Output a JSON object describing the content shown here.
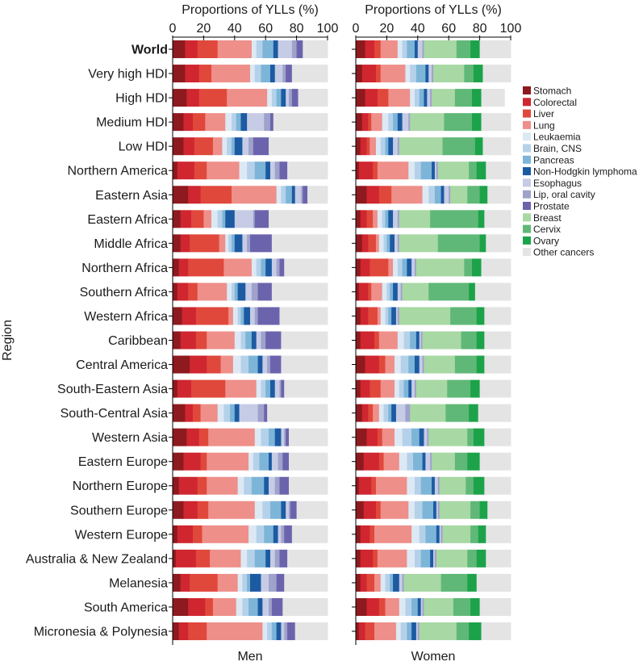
{
  "chart_data": {
    "type": "bar",
    "orientation": "horizontal",
    "stacked": true,
    "top_axis_title": "Proportions of YLLs (%)",
    "y_axis_title": "Region",
    "xlim": [
      0,
      100
    ],
    "ticks": [
      0,
      20,
      40,
      60,
      80,
      100
    ],
    "regions": [
      "World",
      "Very high HDI",
      "High HDI",
      "Medium HDI",
      "Low HDI",
      "Northern America",
      "Eastern Asia",
      "Eastern Africa",
      "Middle Africa",
      "Northern Africa",
      "Southern Africa",
      "Western Africa",
      "Caribbean",
      "Central America",
      "South-Eastern Asia",
      "South-Central Asia",
      "Western Asia",
      "Eastern Europe",
      "Northern Europe",
      "Southern Europe",
      "Western Europe",
      "Australia & New Zealand",
      "Melanesia",
      "South America",
      "Micronesia & Polynesia"
    ],
    "bold_regions": [
      "World"
    ],
    "categories": [
      {
        "name": "Stomach",
        "color": "#8c1a1f"
      },
      {
        "name": "Colorectal",
        "color": "#cf2630"
      },
      {
        "name": "Liver",
        "color": "#e0483c"
      },
      {
        "name": "Lung",
        "color": "#ee8f8a"
      },
      {
        "name": "Leukaemia",
        "color": "#dce9f4"
      },
      {
        "name": "Brain, CNS",
        "color": "#b5d1ea"
      },
      {
        "name": "Pancreas",
        "color": "#7db5d8"
      },
      {
        "name": "Non-Hodgkin lymphoma",
        "color": "#1c5aa2"
      },
      {
        "name": "Esophagus",
        "color": "#c6cce5"
      },
      {
        "name": "Lip, oral cavity",
        "color": "#9fa2cb"
      },
      {
        "name": "Prostate",
        "color": "#6b64ad"
      },
      {
        "name": "Breast",
        "color": "#a8d8a4"
      },
      {
        "name": "Cervix",
        "color": "#5fb878"
      },
      {
        "name": "Ovary",
        "color": "#1ca34a"
      },
      {
        "name": "Other cancers",
        "color": "#e4e4e4"
      }
    ],
    "panels": [
      {
        "label": "Men",
        "values": [
          [
            8,
            8,
            13,
            22,
            3,
            4,
            7,
            3,
            9,
            3,
            4,
            0,
            0,
            0,
            16
          ],
          [
            8,
            9,
            8,
            25,
            3,
            4,
            6,
            3,
            5,
            2,
            4,
            0,
            0,
            0,
            23
          ],
          [
            9,
            8,
            18,
            26,
            3,
            3,
            3,
            3,
            2,
            2,
            4,
            0,
            0,
            0,
            19
          ],
          [
            7,
            6,
            8,
            13,
            4,
            3,
            3,
            4,
            11,
            4,
            2,
            0,
            0,
            0,
            35
          ],
          [
            7,
            7,
            12,
            6,
            3,
            3,
            2,
            5,
            4,
            3,
            10,
            0,
            0,
            0,
            38
          ],
          [
            3,
            11,
            8,
            21,
            5,
            5,
            7,
            3,
            3,
            3,
            5,
            0,
            0,
            0,
            26
          ],
          [
            10,
            8,
            20,
            29,
            3,
            3,
            4,
            2,
            4,
            1,
            3,
            0,
            0,
            0,
            13
          ],
          [
            5,
            7,
            8,
            5,
            4,
            3,
            2,
            6,
            12,
            1,
            9,
            0,
            0,
            0,
            38
          ],
          [
            5,
            6,
            19,
            4,
            2,
            2,
            2,
            5,
            3,
            2,
            14,
            0,
            0,
            0,
            36
          ],
          [
            4,
            6,
            23,
            18,
            3,
            3,
            3,
            4,
            3,
            2,
            3,
            0,
            0,
            0,
            28
          ],
          [
            3,
            7,
            6,
            19,
            3,
            2,
            2,
            5,
            4,
            4,
            9,
            0,
            0,
            0,
            36
          ],
          [
            6,
            9,
            21,
            3,
            3,
            2,
            2,
            4,
            3,
            2,
            14,
            0,
            0,
            0,
            31
          ],
          [
            5,
            10,
            7,
            18,
            4,
            3,
            4,
            3,
            3,
            3,
            10,
            0,
            0,
            0,
            30
          ],
          [
            11,
            11,
            9,
            8,
            5,
            5,
            6,
            3,
            3,
            2,
            7,
            0,
            0,
            0,
            30
          ],
          [
            3,
            9,
            22,
            20,
            3,
            3,
            3,
            3,
            3,
            1,
            2,
            0,
            0,
            0,
            28
          ],
          [
            8,
            5,
            5,
            11,
            4,
            4,
            3,
            3,
            12,
            4,
            2,
            0,
            0,
            0,
            39
          ],
          [
            9,
            8,
            6,
            30,
            4,
            5,
            4,
            4,
            2,
            1,
            2,
            0,
            0,
            0,
            25
          ],
          [
            7,
            11,
            4,
            27,
            3,
            4,
            6,
            2,
            4,
            3,
            4,
            0,
            0,
            0,
            25
          ],
          [
            4,
            12,
            6,
            20,
            4,
            5,
            8,
            3,
            4,
            3,
            6,
            0,
            0,
            0,
            25
          ],
          [
            7,
            9,
            7,
            30,
            5,
            5,
            7,
            3,
            2,
            1,
            4,
            0,
            0,
            0,
            20
          ],
          [
            3,
            10,
            6,
            30,
            5,
            5,
            6,
            3,
            2,
            2,
            5,
            0,
            0,
            0,
            23
          ],
          [
            2,
            13,
            9,
            20,
            4,
            5,
            7,
            3,
            3,
            3,
            5,
            0,
            0,
            0,
            26
          ],
          [
            5,
            6,
            18,
            13,
            3,
            3,
            2,
            7,
            5,
            5,
            5,
            0,
            0,
            0,
            28
          ],
          [
            10,
            11,
            5,
            15,
            4,
            4,
            6,
            3,
            4,
            2,
            7,
            0,
            0,
            0,
            29
          ],
          [
            4,
            6,
            12,
            36,
            3,
            3,
            3,
            3,
            2,
            2,
            5,
            0,
            0,
            0,
            21
          ]
        ]
      },
      {
        "label": "Women",
        "values": [
          [
            6,
            6,
            4,
            11,
            3,
            3,
            5,
            2,
            3,
            1,
            0,
            21,
            9,
            6,
            20
          ],
          [
            4,
            9,
            3,
            16,
            3,
            4,
            6,
            2,
            2,
            1,
            0,
            20,
            6,
            6,
            18
          ],
          [
            6,
            8,
            7,
            14,
            3,
            3,
            3,
            2,
            2,
            1,
            0,
            15,
            11,
            6,
            15
          ],
          [
            4,
            4,
            2,
            7,
            4,
            3,
            3,
            3,
            4,
            1,
            0,
            22,
            18,
            6,
            19
          ],
          [
            3,
            4,
            2,
            4,
            3,
            3,
            2,
            3,
            3,
            1,
            0,
            28,
            21,
            5,
            18
          ],
          [
            2,
            9,
            3,
            20,
            4,
            4,
            7,
            2,
            1,
            1,
            0,
            20,
            5,
            6,
            16
          ],
          [
            7,
            8,
            8,
            20,
            4,
            4,
            4,
            2,
            3,
            1,
            0,
            11,
            8,
            5,
            15
          ],
          [
            3,
            4,
            4,
            3,
            3,
            2,
            2,
            3,
            3,
            1,
            0,
            20,
            31,
            4,
            17
          ],
          [
            4,
            4,
            5,
            2,
            3,
            2,
            2,
            3,
            2,
            1,
            0,
            25,
            27,
            4,
            16
          ],
          [
            3,
            6,
            12,
            3,
            3,
            3,
            3,
            3,
            2,
            1,
            0,
            31,
            5,
            6,
            19
          ],
          [
            2,
            6,
            2,
            7,
            3,
            2,
            2,
            3,
            2,
            1,
            0,
            17,
            26,
            4,
            23
          ],
          [
            3,
            5,
            6,
            2,
            3,
            2,
            2,
            3,
            1,
            1,
            0,
            33,
            17,
            5,
            17
          ],
          [
            3,
            9,
            3,
            12,
            4,
            4,
            4,
            2,
            1,
            1,
            0,
            25,
            10,
            5,
            17
          ],
          [
            6,
            9,
            4,
            6,
            4,
            5,
            4,
            3,
            2,
            1,
            0,
            20,
            14,
            5,
            17
          ],
          [
            3,
            6,
            7,
            9,
            3,
            3,
            3,
            2,
            2,
            1,
            0,
            20,
            15,
            6,
            20
          ],
          [
            4,
            4,
            3,
            4,
            3,
            3,
            2,
            3,
            6,
            3,
            0,
            23,
            15,
            6,
            21
          ],
          [
            7,
            7,
            3,
            8,
            5,
            6,
            5,
            3,
            2,
            1,
            0,
            25,
            4,
            7,
            17
          ],
          [
            5,
            10,
            3,
            10,
            5,
            4,
            6,
            2,
            3,
            1,
            0,
            15,
            8,
            8,
            20
          ],
          [
            2,
            8,
            3,
            20,
            5,
            4,
            7,
            2,
            2,
            1,
            0,
            17,
            5,
            7,
            17
          ],
          [
            5,
            8,
            3,
            18,
            4,
            5,
            7,
            2,
            1,
            1,
            0,
            20,
            6,
            5,
            15
          ],
          [
            3,
            6,
            3,
            24,
            5,
            4,
            7,
            2,
            1,
            1,
            0,
            18,
            5,
            5,
            16
          ],
          [
            3,
            8,
            3,
            19,
            5,
            4,
            6,
            2,
            1,
            1,
            0,
            20,
            6,
            6,
            16
          ],
          [
            3,
            4,
            5,
            4,
            3,
            3,
            2,
            4,
            2,
            1,
            0,
            24,
            17,
            6,
            22
          ],
          [
            7,
            8,
            4,
            9,
            4,
            4,
            4,
            2,
            1,
            1,
            0,
            19,
            11,
            6,
            20
          ],
          [
            2,
            4,
            6,
            14,
            3,
            4,
            3,
            3,
            1,
            1,
            0,
            24,
            8,
            8,
            19
          ]
        ]
      }
    ]
  }
}
